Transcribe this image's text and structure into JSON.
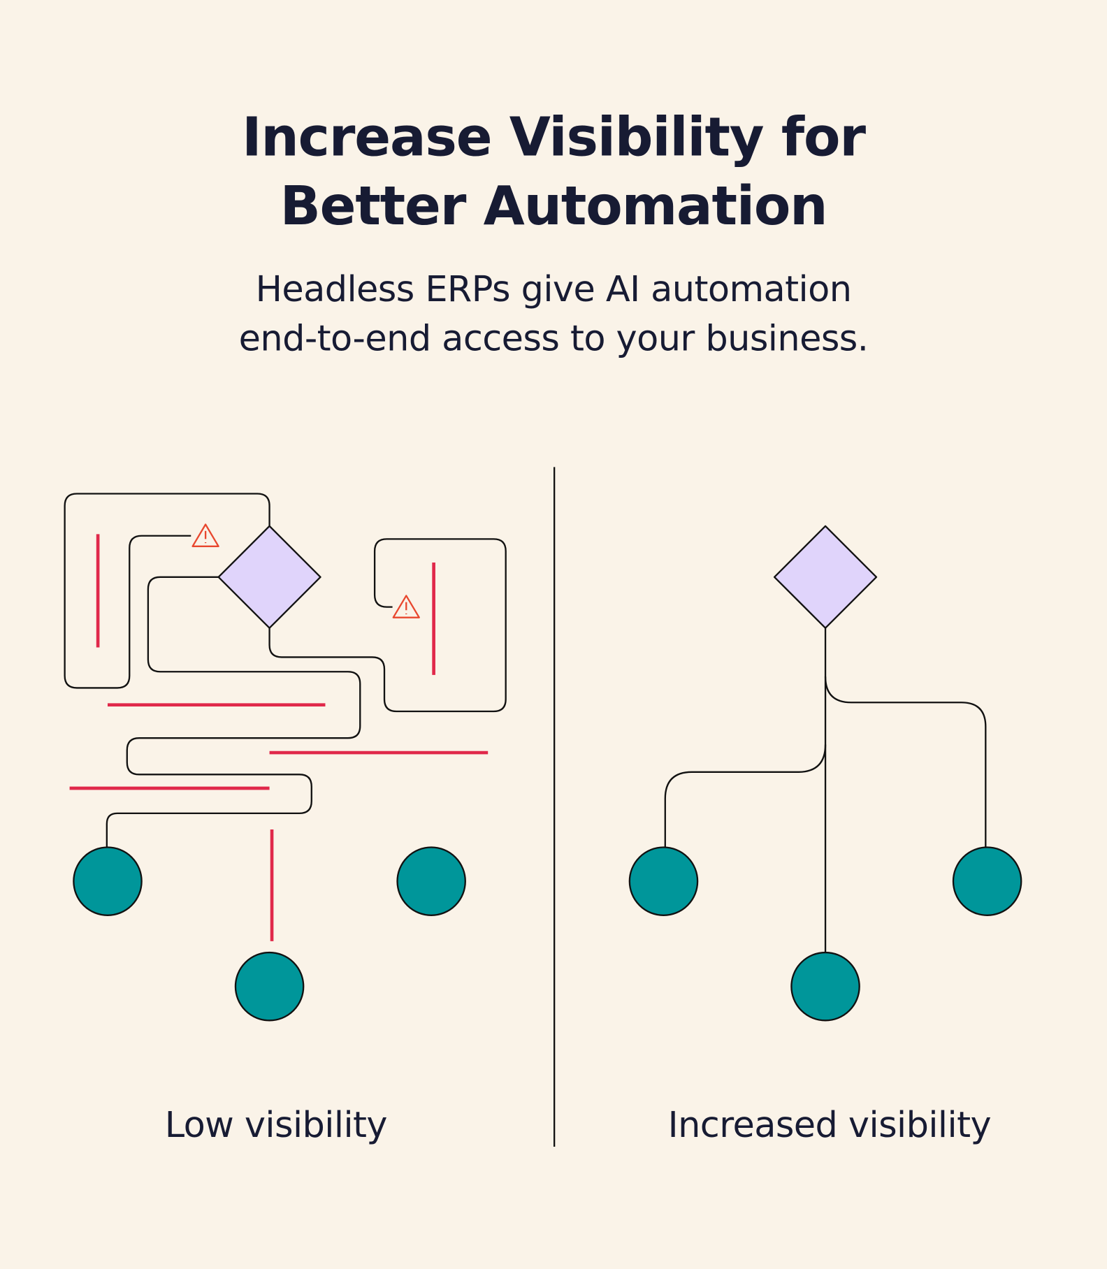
{
  "header": {
    "title": [
      "Increase Visibility for",
      "Better Automation"
    ],
    "subtitle": [
      "Headless ERPs give AI automation",
      "end-to-end access to your business."
    ]
  },
  "panels": [
    {
      "label": "Low visibility"
    },
    {
      "label": "Increased visibility"
    }
  ]
}
